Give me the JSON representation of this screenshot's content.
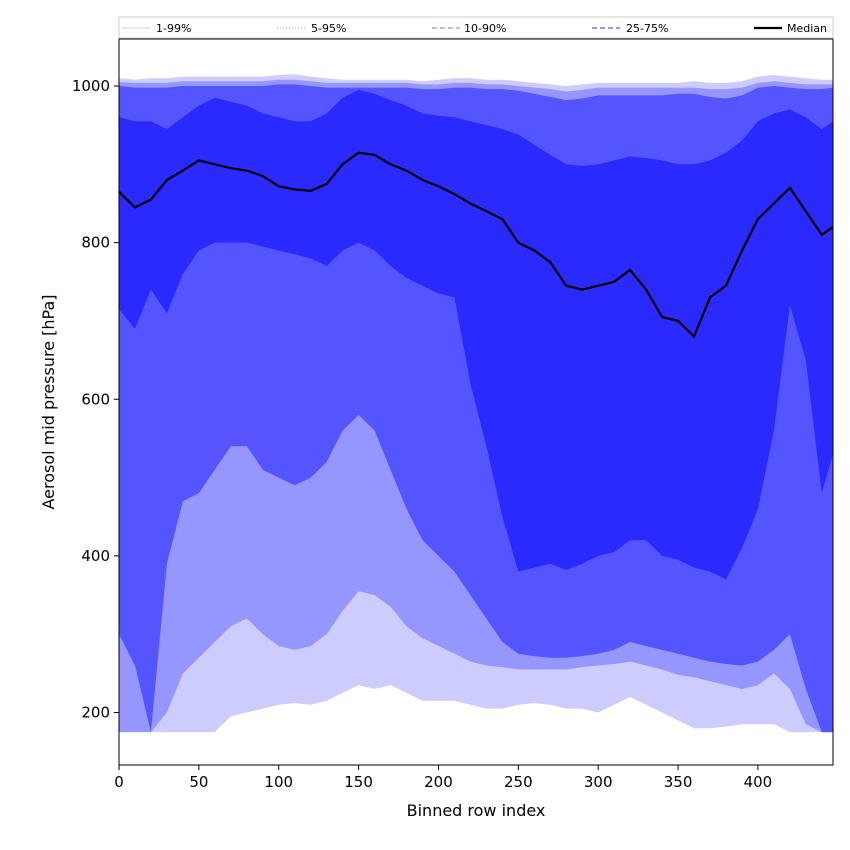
{
  "chart_data": {
    "type": "area",
    "xlabel": "Binned row index",
    "ylabel": "Aerosol mid pressure [hPa]",
    "xlim": [
      0,
      447
    ],
    "ylim": [
      133,
      1060
    ],
    "x_ticks": [
      0,
      50,
      100,
      150,
      200,
      250,
      300,
      350,
      400
    ],
    "x_tick_labels": [
      "0",
      "50",
      "100",
      "150",
      "200",
      "250",
      "300",
      "350",
      "400"
    ],
    "y_ticks": [
      200,
      400,
      600,
      800,
      1000
    ],
    "y_tick_labels": [
      "200",
      "400",
      "600",
      "800",
      "1000"
    ],
    "grid": false,
    "legend_position": "top",
    "legend": [
      {
        "label": "1-99%",
        "color": "#d8d8ff",
        "style": "solid"
      },
      {
        "label": "5-95%",
        "color": "#b0b0ff",
        "style": "dotted"
      },
      {
        "label": "10-90%",
        "color": "#9090ff",
        "style": "dashed"
      },
      {
        "label": "25-75%",
        "color": "#5858ff",
        "style": "dashed"
      },
      {
        "label": "Median",
        "color": "#000000",
        "style": "solid"
      }
    ],
    "x": [
      0,
      10,
      20,
      30,
      40,
      50,
      60,
      70,
      80,
      90,
      100,
      110,
      120,
      130,
      140,
      150,
      160,
      170,
      180,
      190,
      200,
      210,
      220,
      230,
      240,
      250,
      260,
      270,
      280,
      290,
      300,
      310,
      320,
      330,
      340,
      350,
      360,
      370,
      380,
      390,
      400,
      410,
      420,
      430,
      440,
      447
    ],
    "bands": [
      {
        "name": "1-99%",
        "color": "#ccccff",
        "lower": [
          175,
          175,
          175,
          175,
          175,
          175,
          175,
          195,
          200,
          205,
          210,
          212,
          210,
          215,
          225,
          235,
          230,
          235,
          225,
          215,
          215,
          215,
          210,
          205,
          205,
          210,
          212,
          210,
          205,
          205,
          200,
          210,
          220,
          210,
          200,
          190,
          180,
          180,
          182,
          185,
          185,
          185,
          175,
          175,
          175,
          175
        ],
        "upper": [
          1010,
          1008,
          1010,
          1010,
          1012,
          1012,
          1012,
          1012,
          1012,
          1012,
          1014,
          1015,
          1012,
          1010,
          1008,
          1008,
          1008,
          1008,
          1008,
          1006,
          1008,
          1010,
          1010,
          1008,
          1008,
          1006,
          1004,
          1002,
          1000,
          1002,
          1004,
          1004,
          1004,
          1004,
          1004,
          1004,
          1006,
          1004,
          1004,
          1006,
          1012,
          1014,
          1012,
          1010,
          1008,
          1008
        ]
      },
      {
        "name": "5-95%",
        "color": "#9696ff",
        "lower": [
          175,
          175,
          175,
          200,
          250,
          270,
          290,
          310,
          320,
          300,
          285,
          280,
          285,
          300,
          330,
          355,
          350,
          335,
          310,
          295,
          285,
          275,
          265,
          260,
          258,
          255,
          255,
          255,
          255,
          258,
          260,
          262,
          265,
          260,
          255,
          248,
          245,
          240,
          235,
          230,
          235,
          250,
          230,
          185,
          175,
          175
        ],
        "upper": [
          1005,
          1004,
          1004,
          1004,
          1006,
          1006,
          1006,
          1006,
          1006,
          1006,
          1008,
          1008,
          1006,
          1004,
          1004,
          1004,
          1004,
          1004,
          1004,
          1002,
          1002,
          1004,
          1004,
          1002,
          1002,
          1000,
          998,
          996,
          993,
          995,
          998,
          998,
          998,
          998,
          998,
          998,
          998,
          996,
          996,
          998,
          1004,
          1006,
          1004,
          1002,
          1002,
          1002
        ]
      },
      {
        "name": "10-90%",
        "color": "#5555ff",
        "lower": [
          300,
          260,
          175,
          390,
          470,
          480,
          510,
          540,
          540,
          510,
          500,
          490,
          500,
          520,
          560,
          580,
          560,
          510,
          460,
          420,
          400,
          380,
          350,
          320,
          290,
          275,
          272,
          270,
          270,
          272,
          275,
          280,
          290,
          285,
          280,
          275,
          270,
          265,
          262,
          260,
          265,
          280,
          300,
          230,
          175,
          175
        ],
        "upper": [
          1000,
          998,
          998,
          998,
          1000,
          1000,
          1000,
          1000,
          1000,
          1000,
          1002,
          1002,
          1000,
          998,
          998,
          998,
          998,
          998,
          998,
          996,
          996,
          998,
          998,
          996,
          996,
          994,
          990,
          986,
          982,
          984,
          988,
          988,
          988,
          988,
          988,
          990,
          990,
          986,
          984,
          988,
          998,
          1000,
          998,
          996,
          996,
          998
        ]
      },
      {
        "name": "25-75%",
        "color": "#2a2aff",
        "lower": [
          715,
          690,
          740,
          710,
          760,
          790,
          800,
          800,
          800,
          795,
          790,
          785,
          780,
          770,
          790,
          800,
          790,
          770,
          755,
          745,
          735,
          730,
          620,
          540,
          450,
          380,
          385,
          390,
          382,
          390,
          400,
          405,
          420,
          420,
          400,
          395,
          385,
          380,
          370,
          410,
          460,
          560,
          720,
          650,
          480,
          530
        ],
        "upper": [
          960,
          955,
          955,
          945,
          960,
          975,
          985,
          980,
          975,
          965,
          960,
          955,
          955,
          965,
          985,
          995,
          990,
          982,
          975,
          965,
          962,
          960,
          955,
          950,
          945,
          938,
          925,
          912,
          900,
          898,
          900,
          905,
          910,
          908,
          905,
          900,
          900,
          905,
          915,
          930,
          955,
          965,
          970,
          960,
          945,
          955
        ]
      }
    ],
    "series": [
      {
        "name": "Median",
        "color": "#000000",
        "values": [
          865,
          845,
          855,
          880,
          892,
          905,
          900,
          895,
          892,
          885,
          872,
          868,
          866,
          875,
          900,
          915,
          912,
          900,
          892,
          880,
          872,
          862,
          850,
          840,
          830,
          800,
          790,
          775,
          745,
          740,
          745,
          750,
          765,
          740,
          705,
          700,
          680,
          730,
          745,
          790,
          830,
          850,
          870,
          840,
          810,
          820
        ]
      }
    ]
  }
}
